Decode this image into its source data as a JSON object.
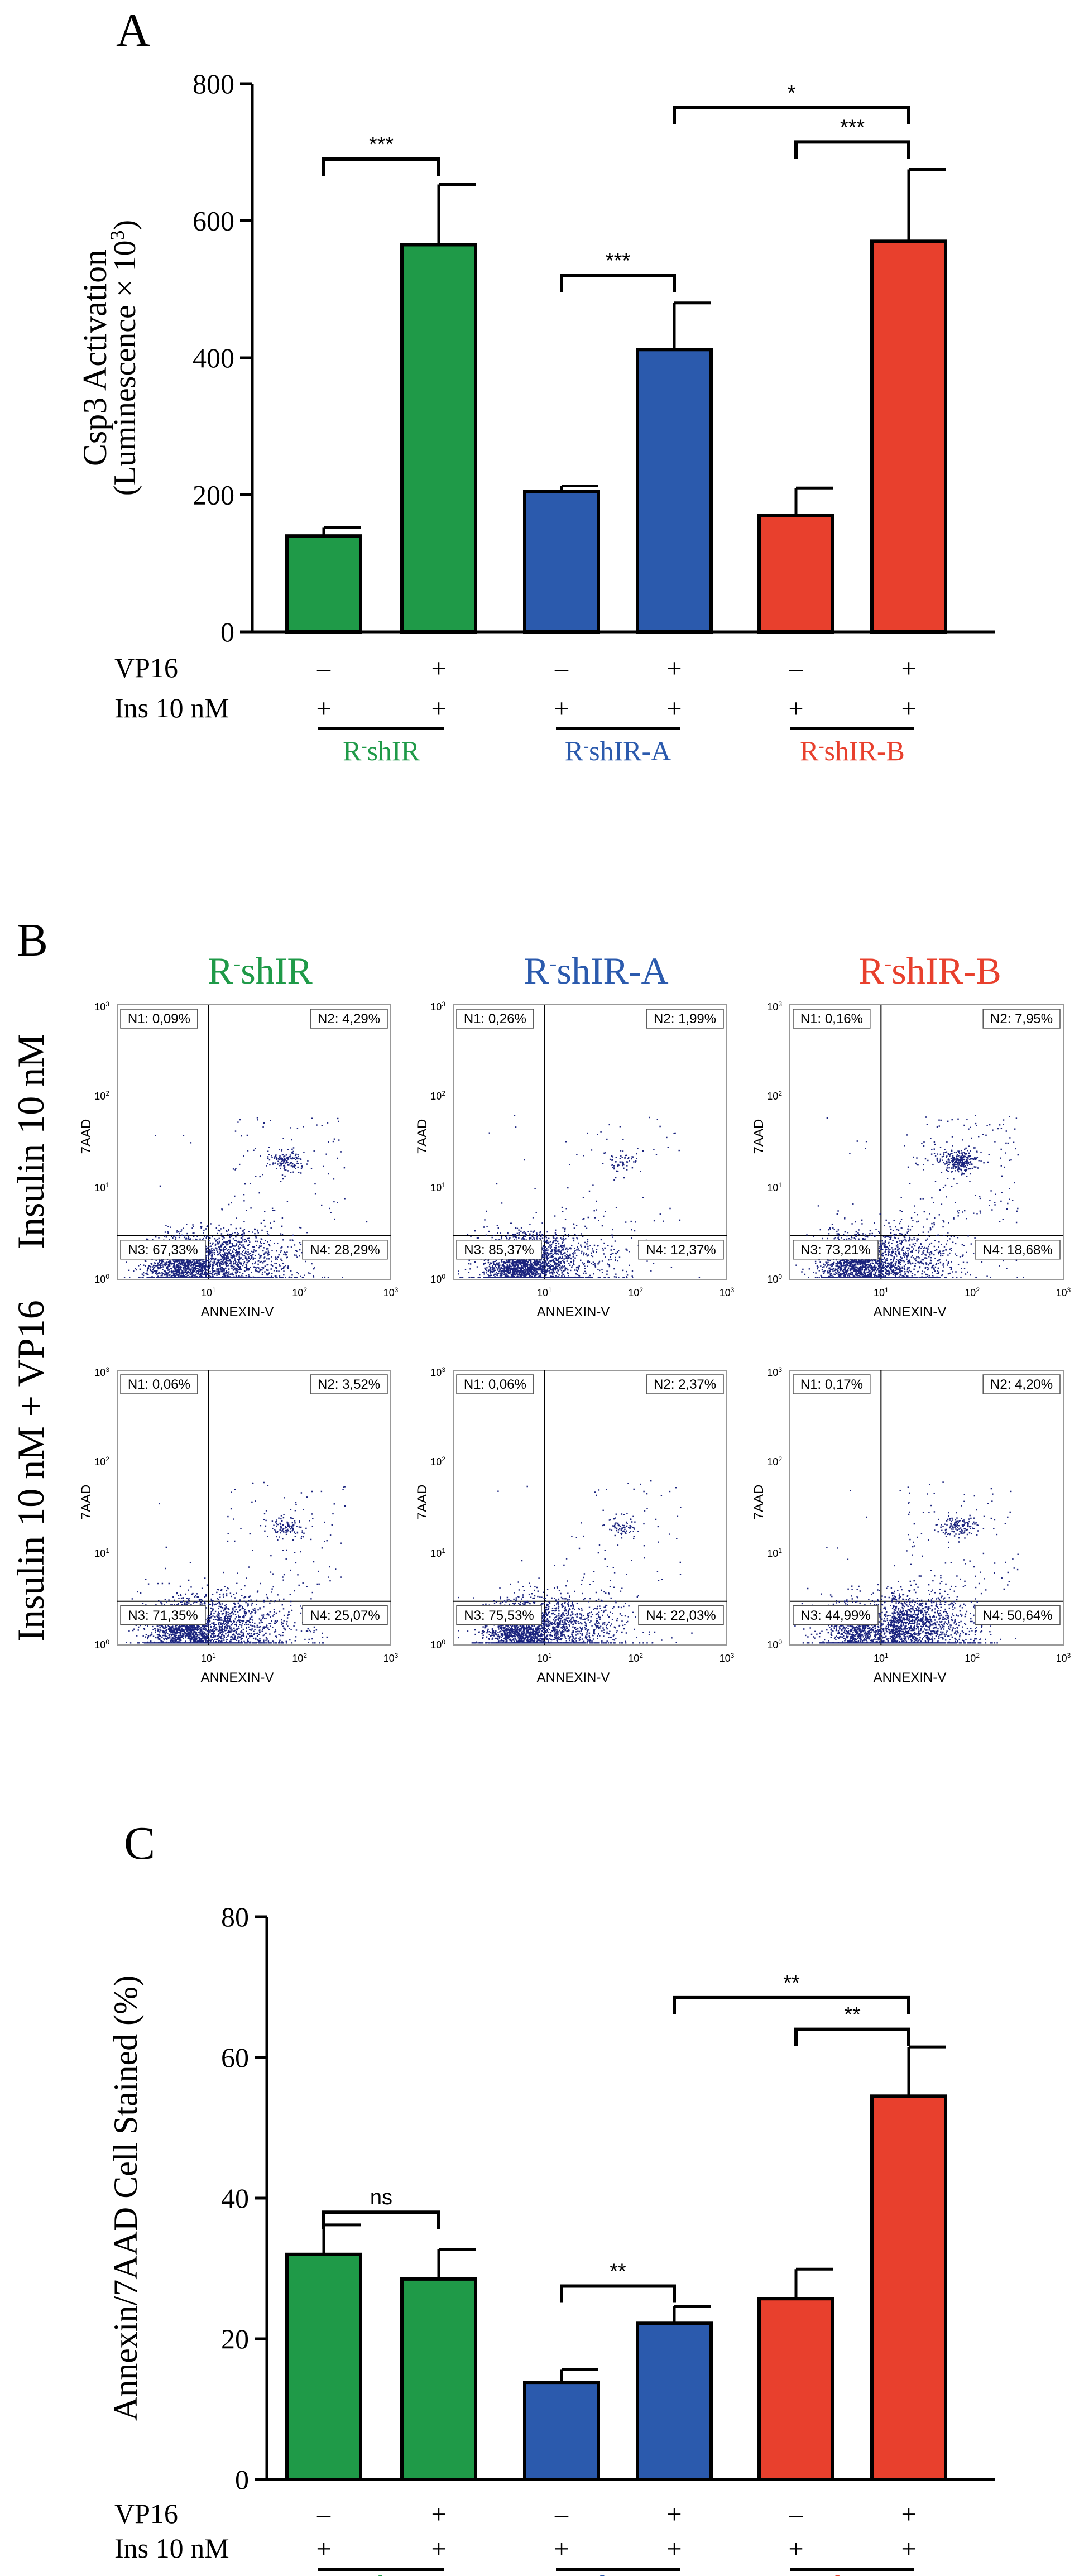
{
  "colors": {
    "green": "#1f9a48",
    "blue": "#2b5aad",
    "red": "#e8402d",
    "dots": "#1a237e",
    "axis": "#000000"
  },
  "panel_a": {
    "label": "A",
    "ylabel_line1": "Csp3 Activation",
    "ylabel_line2": "(Luminescence × 10",
    "ylabel_sup": "3",
    "ylabel_close": ")",
    "row1_label": "VP16",
    "row2_label": "Ins 10 nM",
    "minus": "–",
    "plus": "+",
    "groups": [
      {
        "prefix": "R",
        "sup": "-",
        "suffix": "shIR",
        "color": "green"
      },
      {
        "prefix": "R",
        "sup": "-",
        "suffix": "shIR-A",
        "color": "blue"
      },
      {
        "prefix": "R",
        "sup": "-",
        "suffix": "shIR-B",
        "color": "red"
      }
    ],
    "sig": [
      "***",
      "***",
      "*",
      "***"
    ]
  },
  "panel_b": {
    "label": "B",
    "row_labels": [
      "Insulin 10 nM",
      "Insulin 10 nM + VP16"
    ],
    "col_titles": [
      {
        "prefix": "R",
        "sup": "-",
        "suffix": "shIR",
        "color": "green"
      },
      {
        "prefix": "R",
        "sup": "-",
        "suffix": "shIR-A",
        "color": "blue"
      },
      {
        "prefix": "R",
        "sup": "-",
        "suffix": "shIR-B",
        "color": "red"
      }
    ],
    "xlabel": "ANNEXIN-V",
    "ylabel": "7AAD",
    "tick_base": "10",
    "tick_exps": [
      "0",
      "1",
      "2",
      "3"
    ],
    "plots": [
      {
        "n1": "N1: 0,09%",
        "n2": "N2: 4,29%",
        "n3": "N3: 67,33%",
        "n4": "N4: 28,29%"
      },
      {
        "n1": "N1: 0,26%",
        "n2": "N2: 1,99%",
        "n3": "N3: 85,37%",
        "n4": "N4: 12,37%"
      },
      {
        "n1": "N1: 0,16%",
        "n2": "N2: 7,95%",
        "n3": "N3: 73,21%",
        "n4": "N4: 18,68%"
      },
      {
        "n1": "N1: 0,06%",
        "n2": "N2: 3,52%",
        "n3": "N3: 71,35%",
        "n4": "N4: 25,07%"
      },
      {
        "n1": "N1: 0,06%",
        "n2": "N2: 2,37%",
        "n3": "N3: 75,53%",
        "n4": "N4: 22,03%"
      },
      {
        "n1": "N1: 0,17%",
        "n2": "N2: 4,20%",
        "n3": "N3: 44,99%",
        "n4": "N4: 50,64%"
      }
    ]
  },
  "panel_c": {
    "label": "C",
    "ylabel": "Annexin/7AAD Cell Stained (%)",
    "row1_label": "VP16",
    "row2_label": "Ins 10 nM",
    "minus": "–",
    "plus": "+",
    "groups": [
      {
        "prefix": "R",
        "sup": "-",
        "suffix": "shIR",
        "color": "green"
      },
      {
        "prefix": "R",
        "sup": "-",
        "suffix": "shIR-A",
        "color": "blue"
      },
      {
        "prefix": "R",
        "sup": "-",
        "suffix": "shIR-B",
        "color": "red"
      }
    ],
    "sig": [
      "ns",
      "**",
      "**",
      "**"
    ]
  },
  "chart_data": [
    {
      "type": "bar",
      "title": "A",
      "ylabel": "Csp3 Activation (Luminescence × 10³)",
      "ylim": [
        0,
        800
      ],
      "yticks": [
        0,
        200,
        400,
        600,
        800
      ],
      "categories": [
        "R-shIR VP16-",
        "R-shIR VP16+",
        "R-shIR-A VP16-",
        "R-shIR-A VP16+",
        "R-shIR-B VP16-",
        "R-shIR-B VP16+"
      ],
      "vp16": [
        "-",
        "+",
        "-",
        "+",
        "-",
        "+"
      ],
      "ins": [
        "+",
        "+",
        "+",
        "+",
        "+",
        "+"
      ],
      "values": [
        140,
        565,
        205,
        412,
        170,
        570
      ],
      "errors": [
        12,
        88,
        8,
        68,
        40,
        105
      ],
      "bar_colors": [
        "green",
        "green",
        "blue",
        "blue",
        "red",
        "red"
      ],
      "comparisons": [
        {
          "from": 0,
          "to": 1,
          "label": "***",
          "y": 690
        },
        {
          "from": 2,
          "to": 3,
          "label": "***",
          "y": 520
        },
        {
          "from": 3,
          "to": 5,
          "label": "*",
          "y": 765
        },
        {
          "from": 4,
          "to": 5,
          "label": "***",
          "y": 715
        }
      ]
    },
    {
      "type": "bar",
      "title": "C",
      "ylabel": "Annexin/7AAD Cell Stained (%)",
      "ylim": [
        0,
        80
      ],
      "yticks": [
        0,
        20,
        40,
        60,
        80
      ],
      "categories": [
        "R-shIR VP16-",
        "R-shIR VP16+",
        "R-shIR-A VP16-",
        "R-shIR-A VP16+",
        "R-shIR-B VP16-",
        "R-shIR-B VP16+"
      ],
      "vp16": [
        "-",
        "+",
        "-",
        "+",
        "-",
        "+"
      ],
      "ins": [
        "+",
        "+",
        "+",
        "+",
        "+",
        "+"
      ],
      "values": [
        32,
        28.5,
        13.8,
        22.2,
        25.7,
        54.5
      ],
      "errors": [
        4.2,
        4.2,
        1.8,
        2.4,
        4.2,
        7.0
      ],
      "bar_colors": [
        "green",
        "green",
        "blue",
        "blue",
        "red",
        "red"
      ],
      "comparisons": [
        {
          "from": 0,
          "to": 1,
          "label": "ns",
          "y": 38
        },
        {
          "from": 2,
          "to": 3,
          "label": "**",
          "y": 27.5
        },
        {
          "from": 3,
          "to": 5,
          "label": "**",
          "y": 68.5
        },
        {
          "from": 4,
          "to": 5,
          "label": "**",
          "y": 64
        }
      ]
    },
    {
      "type": "scatter",
      "title": "B",
      "xlabel": "ANNEXIN-V",
      "ylabel": "7AAD",
      "xscale": "log",
      "yscale": "log",
      "xlim": [
        1,
        1000
      ],
      "ylim": [
        1,
        1000
      ],
      "quadrant_gates": {
        "x": 10,
        "y": 3
      },
      "plots": [
        {
          "row": "Insulin 10 nM",
          "col": "R-shIR",
          "N1": 0.09,
          "N2": 4.29,
          "N3": 67.33,
          "N4": 28.29
        },
        {
          "row": "Insulin 10 nM",
          "col": "R-shIR-A",
          "N1": 0.26,
          "N2": 1.99,
          "N3": 85.37,
          "N4": 12.37
        },
        {
          "row": "Insulin 10 nM",
          "col": "R-shIR-B",
          "N1": 0.16,
          "N2": 7.95,
          "N3": 73.21,
          "N4": 18.68
        },
        {
          "row": "Insulin 10 nM + VP16",
          "col": "R-shIR",
          "N1": 0.06,
          "N2": 3.52,
          "N3": 71.35,
          "N4": 25.07
        },
        {
          "row": "Insulin 10 nM + VP16",
          "col": "R-shIR-A",
          "N1": 0.06,
          "N2": 2.37,
          "N3": 75.53,
          "N4": 22.03
        },
        {
          "row": "Insulin 10 nM + VP16",
          "col": "R-shIR-B",
          "N1": 0.17,
          "N2": 4.2,
          "N3": 44.99,
          "N4": 50.64
        }
      ]
    }
  ]
}
